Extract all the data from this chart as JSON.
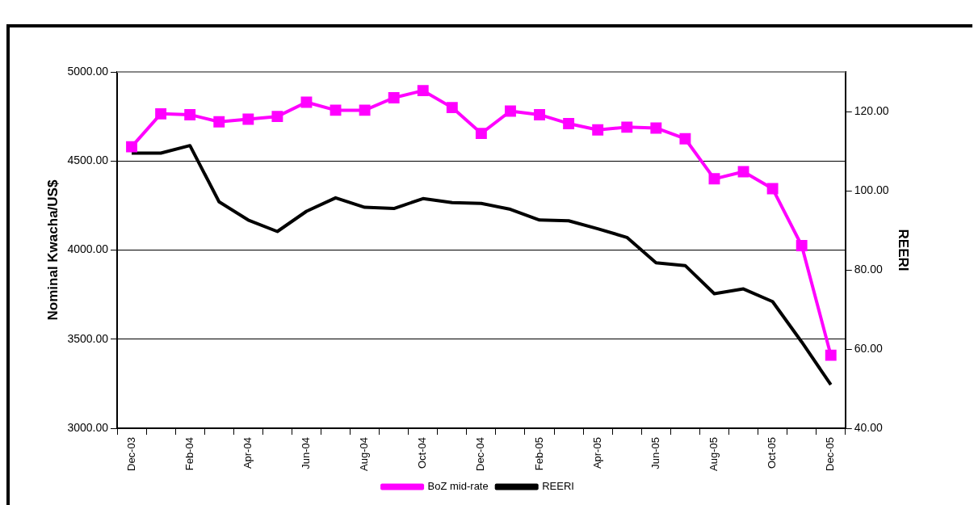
{
  "chart_data": {
    "type": "line",
    "ylabel": "Nominal Kwacha/US$",
    "y2label": "REERI",
    "categories": [
      "Dec-03",
      null,
      "Feb-04",
      null,
      "Apr-04",
      null,
      "Jun-04",
      null,
      "Aug-04",
      null,
      "Oct-04",
      null,
      "Dec-04",
      null,
      "Feb-05",
      null,
      "Apr-05",
      null,
      "Jun-05",
      null,
      "Aug-05",
      null,
      "Oct-05",
      null,
      "Dec-05"
    ],
    "series": [
      {
        "name": "BoZ mid-rate",
        "color": "#ff00ff",
        "marker": "square",
        "values": [
          4580,
          4765,
          4760,
          4720,
          4735,
          4750,
          4830,
          4785,
          4785,
          4855,
          4895,
          4800,
          4655,
          4780,
          4760,
          4710,
          4675,
          4690,
          4685,
          4625,
          4400,
          4440,
          4345,
          4025,
          3410
        ]
      },
      {
        "name": "REERI",
        "color": "#000000",
        "marker": "none",
        "axis": "y2",
        "values": [
          109.5,
          109.5,
          111.4,
          97.2,
          92.6,
          89.7,
          94.8,
          98.2,
          95.8,
          95.5,
          98.0,
          97.0,
          96.8,
          95.3,
          92.6,
          92.4,
          90.4,
          88.2,
          81.8,
          81.1,
          74.0,
          75.2,
          72.0,
          61.8,
          51.0
        ]
      }
    ],
    "ylim": [
      3000,
      5000
    ],
    "yticks": [
      {
        "value": 3000,
        "label": "3000.00"
      },
      {
        "value": 3500,
        "label": "3500.00"
      },
      {
        "value": 4000,
        "label": "4000.00"
      },
      {
        "value": 4500,
        "label": "4500.00"
      },
      {
        "value": 5000,
        "label": "5000.00"
      }
    ],
    "y2lim": [
      40,
      130
    ],
    "y2ticks": [
      {
        "value": 40,
        "label": "40.00"
      },
      {
        "value": 60,
        "label": "60.00"
      },
      {
        "value": 80,
        "label": "80.00"
      },
      {
        "value": 100,
        "label": "100.00"
      },
      {
        "value": 120,
        "label": "120.00"
      }
    ],
    "grid": "y",
    "legend": "bottom",
    "line_style": "solid"
  }
}
